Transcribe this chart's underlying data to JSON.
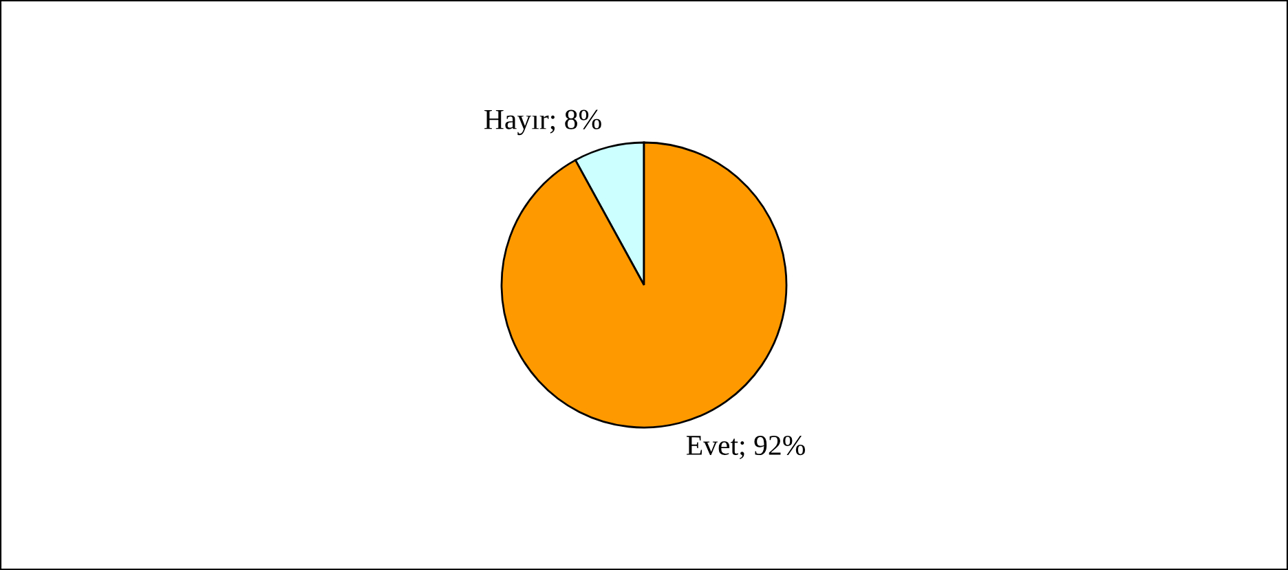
{
  "chart_data": {
    "type": "pie",
    "categories": [
      "Hayır; 8%",
      "Evet; 92%"
    ],
    "values": [
      8,
      92
    ],
    "colors": [
      "#ccffff",
      "#ff9900"
    ],
    "legend": false
  }
}
